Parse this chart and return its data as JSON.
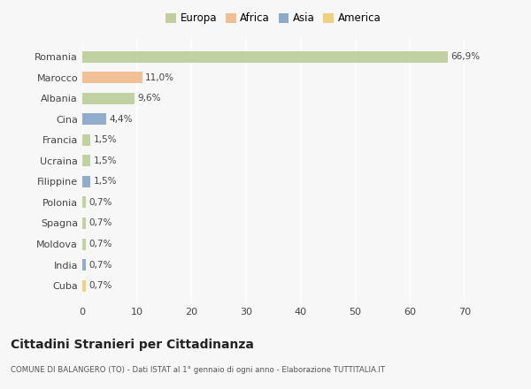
{
  "categories": [
    "Romania",
    "Marocco",
    "Albania",
    "Cina",
    "Francia",
    "Ucraina",
    "Filippine",
    "Polonia",
    "Spagna",
    "Moldova",
    "India",
    "Cuba"
  ],
  "values": [
    66.9,
    11.0,
    9.6,
    4.4,
    1.5,
    1.5,
    1.5,
    0.7,
    0.7,
    0.7,
    0.7,
    0.7
  ],
  "labels": [
    "66,9%",
    "11,0%",
    "9,6%",
    "4,4%",
    "1,5%",
    "1,5%",
    "1,5%",
    "0,7%",
    "0,7%",
    "0,7%",
    "0,7%",
    "0,7%"
  ],
  "colors": [
    "#b5c98e",
    "#f0b482",
    "#b5c98e",
    "#7b9dc2",
    "#b5c98e",
    "#b5c98e",
    "#7b9dc2",
    "#b5c98e",
    "#b5c98e",
    "#b5c98e",
    "#7b9dc2",
    "#f0c96e"
  ],
  "legend_labels": [
    "Europa",
    "Africa",
    "Asia",
    "America"
  ],
  "legend_colors": [
    "#b5c98e",
    "#f0b482",
    "#7b9dc2",
    "#f0c96e"
  ],
  "xlim": [
    0,
    70
  ],
  "xticks": [
    0,
    10,
    20,
    30,
    40,
    50,
    60,
    70
  ],
  "title": "Cittadini Stranieri per Cittadinanza",
  "subtitle": "COMUNE DI BALANGERO (TO) - Dati ISTAT al 1° gennaio di ogni anno - Elaborazione TUTTITALIA.IT",
  "bg_color": "#f7f7f7",
  "grid_color": "#ffffff",
  "bar_height": 0.55
}
